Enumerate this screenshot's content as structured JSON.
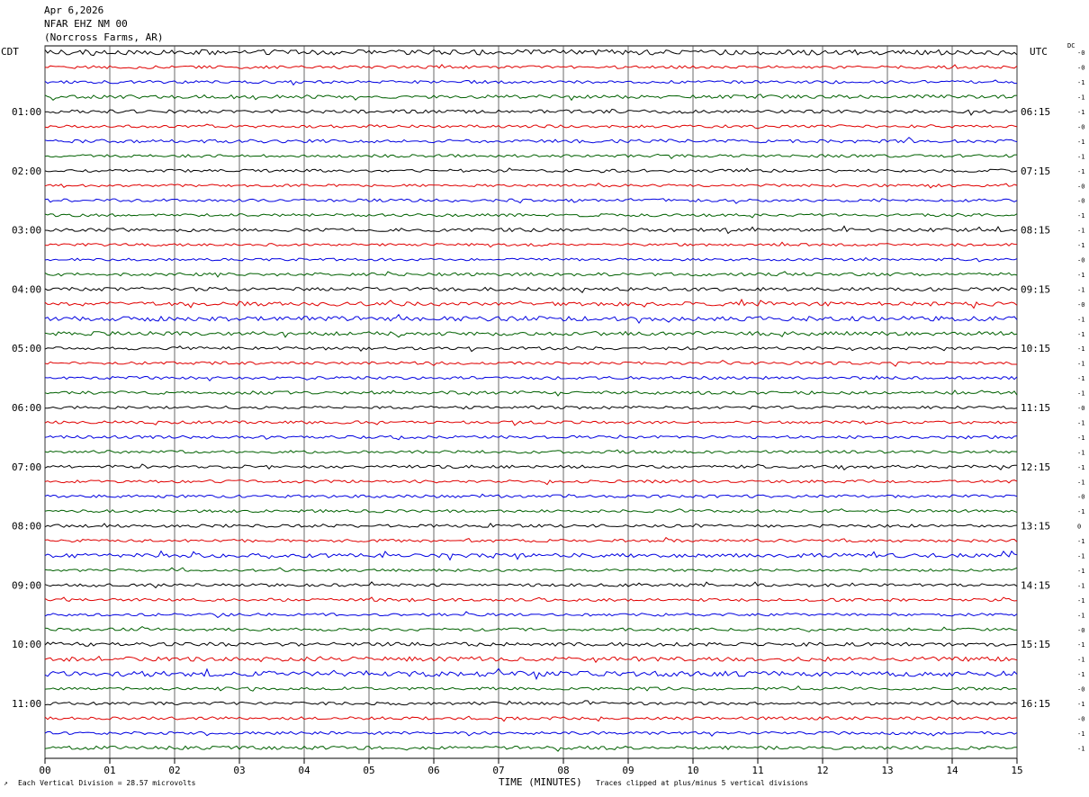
{
  "header": {
    "date": "Apr 6,2026",
    "station": "NFAR EHZ NM 00",
    "location": "(Norcross Farms, AR)"
  },
  "left_zone_label": "CDT",
  "right_zone_label": "UTC",
  "dc_label": "DC",
  "footer": {
    "division_note": "Each Vertical Division =   28.57 microvolts",
    "x_axis_title": "TIME (MINUTES)",
    "clip_note": "Traces clipped at plus/minus 5 vertical divisions"
  },
  "colors": {
    "trace_cycle": [
      "#000000",
      "#e00000",
      "#0000e0",
      "#006000"
    ],
    "grid": "#000000",
    "background": "#ffffff"
  },
  "chart_data": {
    "type": "line",
    "subtype": "helicorder",
    "x_unit": "minutes",
    "xlim": [
      0,
      15
    ],
    "x_ticks": [
      "00",
      "01",
      "02",
      "03",
      "04",
      "05",
      "06",
      "07",
      "08",
      "09",
      "10",
      "11",
      "12",
      "13",
      "14",
      "15"
    ],
    "rows_per_hour": 4,
    "row_count": 48,
    "left_time_labels": [
      "01:00",
      "02:00",
      "03:00",
      "04:00",
      "05:00",
      "06:00",
      "07:00",
      "08:00",
      "09:00",
      "10:00",
      "11:00"
    ],
    "right_time_labels": [
      "06:15",
      "07:15",
      "08:15",
      "09:15",
      "10:15",
      "11:15",
      "12:15",
      "13:15",
      "14:15",
      "15:15",
      "16:15"
    ],
    "dc_offsets": [
      "-0",
      "-0",
      "-1",
      "-1",
      "-1",
      "-0",
      "-1",
      "-1",
      "-1",
      "-0",
      "-0",
      "-1",
      "-1",
      "-1",
      "-0",
      "-1",
      "-1",
      "-0",
      "-1",
      "-1",
      "-1",
      "-1",
      "-1",
      "-1",
      "-0",
      "-1",
      "-1",
      "-1",
      "-1",
      "-1",
      "-0",
      "-1",
      "0",
      "-1",
      "-1",
      "-1",
      "-1",
      "-1",
      "-1",
      "-0",
      "-1",
      "-1",
      "-1",
      "-0",
      "-1",
      "-0",
      "-1",
      "-1"
    ],
    "activity_levels": [
      0.9,
      0.5,
      0.5,
      0.6,
      0.6,
      0.5,
      0.6,
      0.5,
      0.5,
      0.45,
      0.5,
      0.5,
      0.6,
      0.45,
      0.45,
      0.55,
      0.6,
      0.7,
      0.8,
      0.7,
      0.5,
      0.5,
      0.5,
      0.55,
      0.5,
      0.5,
      0.5,
      0.5,
      0.5,
      0.5,
      0.5,
      0.5,
      0.5,
      0.5,
      0.7,
      0.45,
      0.5,
      0.5,
      0.5,
      0.5,
      0.65,
      0.75,
      0.9,
      0.5,
      0.5,
      0.5,
      0.5,
      0.6
    ]
  }
}
